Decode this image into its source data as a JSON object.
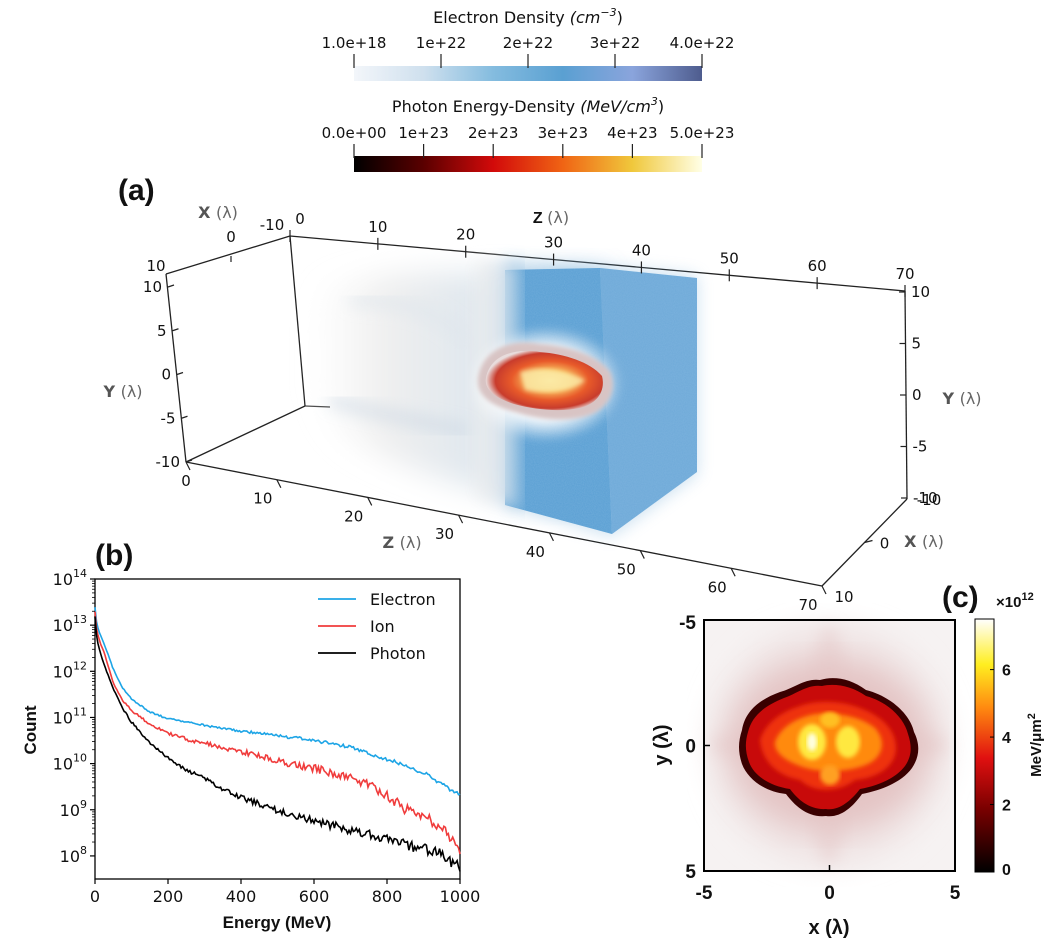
{
  "figure": {
    "panel_a_label": "(a)",
    "panel_b_label": "(b)",
    "panel_c_label": "(c)"
  },
  "colorbars": {
    "electron": {
      "title_main": "Electron Density ",
      "title_unit": "(cm",
      "title_exp": "−3",
      "title_close": ")",
      "ticks": [
        "1.0e+18",
        "1e+22",
        "2e+22",
        "3e+22",
        "4.0e+22"
      ],
      "colors": [
        "#f3f6fa",
        "#cfe0ee",
        "#84bcdf",
        "#5aa0d2",
        "#8aa4dc",
        "#4e5c8e"
      ]
    },
    "photon": {
      "title_main": "Photon Energy-Density ",
      "title_unit": "(MeV/cm",
      "title_exp": "3",
      "title_close": ")",
      "ticks": [
        "0.0e+00",
        "1e+23",
        "2e+23",
        "3e+23",
        "4e+23",
        "5.0e+23"
      ],
      "colors": [
        "#000000",
        "#5a0000",
        "#d20a0a",
        "#f06414",
        "#f0c83c",
        "#ffffe6"
      ]
    }
  },
  "panel_a": {
    "axis_z_top": {
      "label": "Z",
      "unit": "(λ)",
      "ticks": [
        "-10",
        "0",
        "10",
        "20",
        "30",
        "40",
        "50",
        "60",
        "70"
      ]
    },
    "axis_z_bottom": {
      "label": "Z",
      "unit": "(λ)",
      "ticks": [
        "0",
        "10",
        "20",
        "30",
        "40",
        "50",
        "60",
        "70"
      ]
    },
    "axis_x_left": {
      "label": "X",
      "unit": "(λ)",
      "ticks": [
        "0",
        "10"
      ]
    },
    "axis_x_right": {
      "label": "X",
      "unit": "(λ)",
      "ticks": [
        "-10",
        "0",
        "10"
      ]
    },
    "axis_y_left": {
      "label": "Y",
      "unit": "(λ)",
      "ticks": [
        "10",
        "5",
        "0",
        "-5",
        "-10"
      ]
    },
    "axis_y_right": {
      "label": "Y",
      "unit": "(λ)",
      "ticks": [
        "10",
        "5",
        "0",
        "-5",
        "-10"
      ]
    }
  },
  "chart_data": [
    {
      "type": "line",
      "panel": "b",
      "xlabel": "Energy (MeV)",
      "ylabel": "Count",
      "xlim": [
        0,
        1000
      ],
      "ylim_log10": [
        7.5,
        14
      ],
      "yscale": "log",
      "x_ticks": [
        "0",
        "200",
        "400",
        "600",
        "800",
        "1000"
      ],
      "y_ticks": [
        {
          "base": "10",
          "exp": "8"
        },
        {
          "base": "10",
          "exp": "9"
        },
        {
          "base": "10",
          "exp": "10"
        },
        {
          "base": "10",
          "exp": "11"
        },
        {
          "base": "10",
          "exp": "12"
        },
        {
          "base": "10",
          "exp": "13"
        },
        {
          "base": "10",
          "exp": "14"
        }
      ],
      "legend_position": "top-right",
      "x": [
        0,
        25,
        50,
        75,
        100,
        150,
        200,
        250,
        300,
        350,
        400,
        450,
        500,
        550,
        600,
        650,
        700,
        750,
        800,
        850,
        900,
        950,
        1000
      ],
      "series": [
        {
          "name": "Electron",
          "color": "#1ea5e6",
          "log10_values": [
            13.4,
            12.6,
            12.05,
            11.65,
            11.4,
            11.12,
            10.97,
            10.9,
            10.83,
            10.76,
            10.7,
            10.66,
            10.6,
            10.56,
            10.5,
            10.43,
            10.35,
            10.22,
            10.1,
            9.95,
            9.8,
            9.55,
            9.3
          ]
        },
        {
          "name": "Ion",
          "color": "#f03c3c",
          "log10_values": [
            13.3,
            12.4,
            11.75,
            11.38,
            11.15,
            10.86,
            10.66,
            10.53,
            10.44,
            10.35,
            10.26,
            10.17,
            10.06,
            9.97,
            9.9,
            9.8,
            9.68,
            9.55,
            9.3,
            9.02,
            8.85,
            8.65,
            8.1
          ]
        },
        {
          "name": "Photon",
          "color": "#000000",
          "log10_values": [
            13.2,
            12.15,
            11.62,
            11.2,
            10.9,
            10.45,
            10.13,
            9.86,
            9.67,
            9.46,
            9.27,
            9.12,
            8.98,
            8.86,
            8.76,
            8.66,
            8.56,
            8.46,
            8.37,
            8.25,
            8.15,
            8.02,
            7.75
          ]
        }
      ]
    },
    {
      "type": "heatmap",
      "panel": "c",
      "xlabel": "x (λ)",
      "ylabel": "y (λ)",
      "xlim": [
        -5,
        5
      ],
      "ylim": [
        5,
        -5
      ],
      "x_ticks": [
        "-5",
        "0",
        "5"
      ],
      "y_ticks": [
        "-5",
        "0",
        "5"
      ],
      "colorbar_label": "MeV/μm",
      "colorbar_label_exp": "2",
      "colorbar_multiplier_base": "×10",
      "colorbar_multiplier_exp": "12",
      "colorbar_ticks": [
        "0",
        "2",
        "4",
        "6"
      ],
      "colorbar_range": [
        0,
        7.5
      ],
      "peak_value": 7.5
    }
  ]
}
